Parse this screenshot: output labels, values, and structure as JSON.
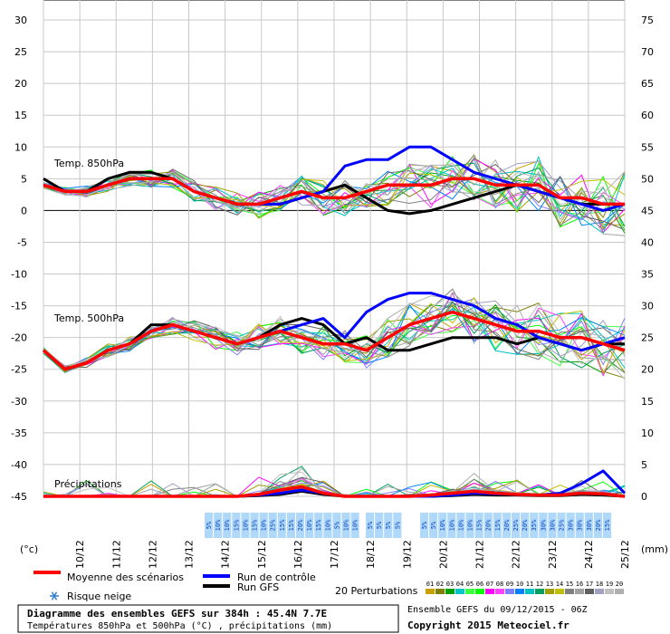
{
  "chart_data": {
    "type": "line",
    "left_axis": {
      "unit": "(°c)",
      "ticks": [
        30,
        25,
        20,
        15,
        10,
        5,
        0,
        -5,
        -10,
        -15,
        -20,
        -25,
        -30,
        -35,
        -40,
        -45
      ],
      "ylim": [
        -45,
        30
      ]
    },
    "right_axis": {
      "unit": "(mm)",
      "ticks": [
        75,
        70,
        65,
        60,
        55,
        50,
        45,
        40,
        35,
        30,
        25,
        20,
        15,
        10,
        5,
        0
      ]
    },
    "x_dates": [
      "10/12",
      "11/12",
      "12/12",
      "13/12",
      "14/12",
      "15/12",
      "16/12",
      "17/12",
      "18/12",
      "19/12",
      "20/12",
      "21/12",
      "22/12",
      "23/12",
      "24/12",
      "25/12"
    ],
    "x_hours": [
      0,
      384
    ],
    "panel_labels": {
      "t850": "Temp. 850hPa",
      "t500": "Temp. 500hPa",
      "precip": "Précipitations"
    },
    "snow_risk": [
      {
        "group": 1,
        "values": [
          "5%",
          "10%",
          "10%",
          "15%",
          "10%",
          "15%",
          "10%",
          "25%",
          "15%",
          "15%",
          "20%",
          "10%",
          "15%",
          "10%",
          "5%",
          "10%",
          "10%"
        ]
      },
      {
        "group": 2,
        "values": [
          "5%",
          "5%",
          "5%",
          "5%"
        ]
      },
      {
        "group": 3,
        "values": [
          "5%",
          "5%",
          "10%",
          "10%",
          "10%",
          "10%",
          "15%",
          "20%",
          "15%",
          "20%",
          "25%",
          "20%",
          "35%",
          "30%",
          "30%",
          "25%",
          "30%",
          "30%",
          "30%",
          "20%",
          "15%"
        ]
      }
    ],
    "series": [
      {
        "name": "Moyenne des scénarios",
        "color": "#ff0000",
        "t850": [
          4,
          3,
          3,
          4,
          5,
          5,
          5,
          3,
          2,
          1,
          1,
          2,
          3,
          2,
          2,
          3,
          4,
          4,
          4,
          5,
          5,
          4,
          4,
          4,
          2,
          2,
          1,
          1
        ],
        "t500": [
          -22,
          -25,
          -24,
          -22,
          -21,
          -19,
          -18,
          -19,
          -20,
          -21,
          -20,
          -19,
          -20,
          -21,
          -21,
          -22,
          -20,
          -18,
          -17,
          -16,
          -17,
          -18,
          -19,
          -19,
          -20,
          -20,
          -21,
          -22
        ],
        "precip": [
          0,
          0,
          0,
          0,
          0,
          0,
          0,
          0,
          0,
          0,
          0.3,
          1,
          1.5,
          0.5,
          0,
          0,
          0,
          0,
          0.2,
          0.5,
          0.8,
          0.5,
          0.3,
          0.2,
          0.2,
          0.5,
          0.4,
          0
        ]
      },
      {
        "name": "Run de contrôle",
        "color": "#0000ff",
        "t850": [
          4,
          3,
          3,
          4,
          5,
          5,
          5,
          3,
          2,
          1,
          1,
          1,
          2,
          3,
          7,
          8,
          8,
          10,
          10,
          8,
          6,
          5,
          4,
          3,
          2,
          1,
          0,
          1
        ],
        "t500": [
          -22,
          -25,
          -24,
          -22,
          -21,
          -19,
          -18,
          -19,
          -20,
          -21,
          -20,
          -19,
          -18,
          -17,
          -20,
          -16,
          -14,
          -13,
          -13,
          -14,
          -15,
          -17,
          -18,
          -20,
          -21,
          -22,
          -21,
          -20
        ],
        "precip": [
          0,
          0,
          0,
          0,
          0,
          0,
          0,
          0,
          0,
          0,
          0.2,
          0.5,
          1,
          0.5,
          0,
          0,
          0,
          0,
          0,
          0.2,
          0.5,
          0.4,
          0.3,
          0.2,
          0.5,
          2,
          4,
          0.5
        ]
      },
      {
        "name": "Run GFS",
        "color": "#000000",
        "t850": [
          5,
          3,
          3,
          5,
          6,
          6,
          5,
          3,
          2,
          1,
          1,
          1,
          2,
          3,
          4,
          2,
          0,
          -0.5,
          0,
          1,
          2,
          3,
          4,
          3,
          2,
          1,
          1,
          1
        ],
        "t500": [
          -22,
          -25,
          -24,
          -22,
          -21,
          -18,
          -18,
          -19,
          -20,
          -21,
          -20,
          -18,
          -17,
          -18,
          -21,
          -20,
          -22,
          -22,
          -21,
          -20,
          -20,
          -20,
          -21,
          -20,
          -21,
          -22,
          -21,
          -21
        ],
        "precip": [
          0,
          0,
          0,
          0,
          0,
          0,
          0,
          0,
          0,
          0,
          0.1,
          0.3,
          0.8,
          0.3,
          0,
          0,
          0,
          0,
          0,
          0.1,
          0.3,
          0.2,
          0.2,
          0.1,
          0.1,
          0.3,
          0.2,
          0
        ]
      }
    ],
    "perturbation_count": 20,
    "perturbation_labels": [
      "01",
      "02",
      "03",
      "04",
      "05",
      "06",
      "07",
      "08",
      "09",
      "10",
      "11",
      "12",
      "13",
      "14",
      "15",
      "16",
      "17",
      "18",
      "19",
      "20"
    ],
    "perturbation_colors": [
      "#c8a000",
      "#808000",
      "#00a000",
      "#00c8c8",
      "#40ff40",
      "#00ff00",
      "#ff00ff",
      "#ff40ff",
      "#8080ff",
      "#0080ff",
      "#00c0c0",
      "#00a060",
      "#a0a000",
      "#c0c000",
      "#808080",
      "#a0a0a0",
      "#606060",
      "#a0a0c0",
      "#c0c0c0",
      "#b0b0b0"
    ],
    "legend": {
      "mean_label": "Moyenne des scénarios",
      "control_label": "Run de contrôle",
      "gfs_label": "Run GFS",
      "snow_label": "Risque neige",
      "perturbations_label": "20 Perturbations"
    }
  },
  "footer": {
    "title_line1": "Diagramme des ensembles GEFS sur 384h : 45.4N 7.7E",
    "title_line2": "Températures 850hPa et 500hPa (°C) , précipitations (mm)",
    "ensemble_run": "Ensemble GEFS du 09/12/2015 - 06Z",
    "copyright": "Copyright 2015 Meteociel.fr"
  },
  "colors": {
    "mean": "#ff0000",
    "control": "#0000ff",
    "gfs": "#000000",
    "grid": "#c0c0c0",
    "snow": "#b0d8f8"
  }
}
